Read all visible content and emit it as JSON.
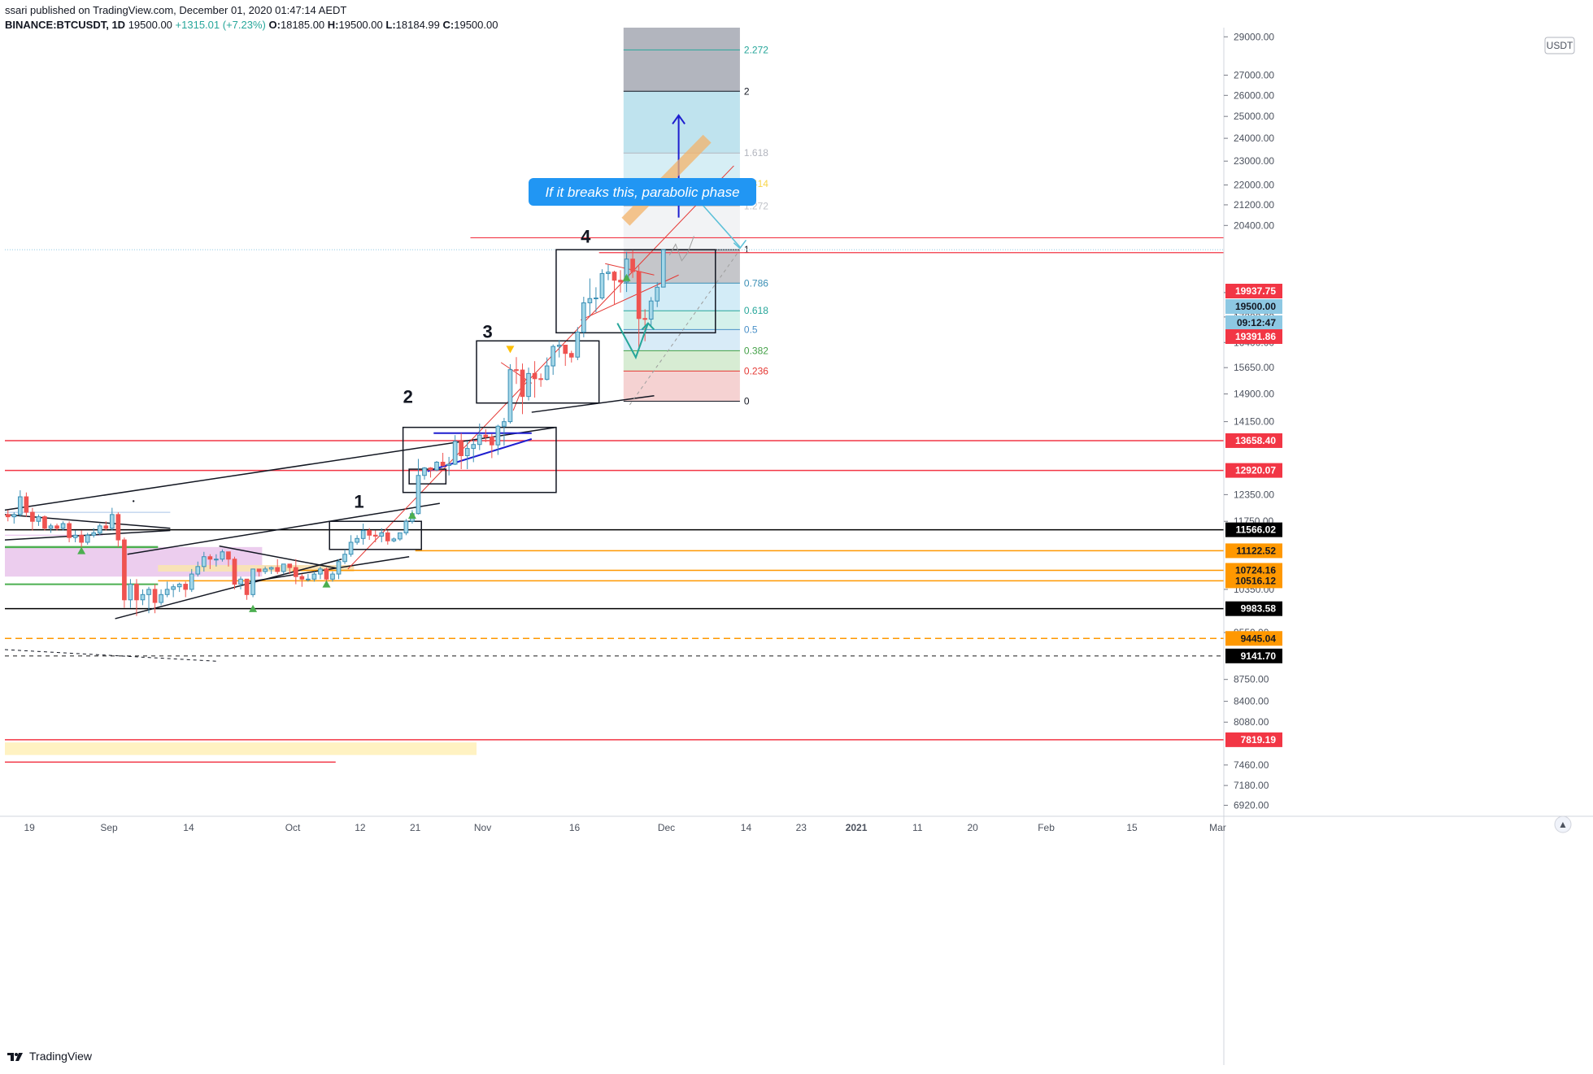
{
  "header": {
    "publisher_line": "ssari published on TradingView.com, December 01, 2020 01:47:14 AEDT",
    "symbol": "BINANCE:BTCUSDT, 1D",
    "last": "19500.00",
    "change": "+1315.01 (+7.23%)",
    "o_label": "O:",
    "o": "18185.00",
    "h_label": "H:",
    "h": "19500.00",
    "l_label": "L:",
    "l": "18184.99",
    "c_label": "C:",
    "c": "19500.00",
    "change_color": "#26a69a"
  },
  "footer": {
    "brand": "TradingView"
  },
  "chart_data": {
    "type": "candlestick",
    "symbol": "BINANCE:BTCUSDT",
    "interval": "1D",
    "currency": "USDT",
    "y_scale": "log",
    "ylim": [
      6800,
      29500
    ],
    "xlim": [
      "2020-08-15",
      "2021-03-02"
    ],
    "grid": false,
    "y_ticks": [
      "29000.00",
      "27000.00",
      "26000.00",
      "25000.00",
      "24000.00",
      "23000.00",
      "22000.00",
      "21200.00",
      "20400.00",
      "18000.00",
      "17200.00",
      "16400.00",
      "15650.00",
      "14900.00",
      "14150.00",
      "12350.00",
      "11750.00",
      "10350.00",
      "9550.00",
      "8750.00",
      "8400.00",
      "8080.00",
      "7460.00",
      "7180.00",
      "6920.00"
    ],
    "x_ticks": [
      {
        "date": "2020-08-19",
        "label": "19"
      },
      {
        "date": "2020-09-01",
        "label": "Sep"
      },
      {
        "date": "2020-09-14",
        "label": "14"
      },
      {
        "date": "2020-10-01",
        "label": "Oct"
      },
      {
        "date": "2020-10-12",
        "label": "12"
      },
      {
        "date": "2020-10-21",
        "label": "21"
      },
      {
        "date": "2020-11-01",
        "label": "Nov"
      },
      {
        "date": "2020-11-16",
        "label": "16"
      },
      {
        "date": "2020-12-01",
        "label": "Dec"
      },
      {
        "date": "2020-12-14",
        "label": "14"
      },
      {
        "date": "2020-12-23",
        "label": "23"
      },
      {
        "date": "2021-01-01",
        "label": "2021"
      },
      {
        "date": "2021-01-11",
        "label": "11"
      },
      {
        "date": "2021-01-20",
        "label": "20"
      },
      {
        "date": "2021-02-01",
        "label": "Feb"
      },
      {
        "date": "2021-02-15",
        "label": "15"
      },
      {
        "date": "2021-03-01",
        "label": "Mar"
      }
    ],
    "candle_colors": {
      "up": "#a4d7e8",
      "up_border": "#3b8fb5",
      "down": "#ef5350"
    },
    "candles": [
      {
        "d": "2020-08-15",
        "o": 11900,
        "h": 12000,
        "l": 11750,
        "c": 11850
      },
      {
        "d": "2020-08-16",
        "o": 11850,
        "h": 11950,
        "l": 11700,
        "c": 11900
      },
      {
        "d": "2020-08-17",
        "o": 11900,
        "h": 12450,
        "l": 11850,
        "c": 12300
      },
      {
        "d": "2020-08-18",
        "o": 12300,
        "h": 12400,
        "l": 11850,
        "c": 11950
      },
      {
        "d": "2020-08-19",
        "o": 11950,
        "h": 12050,
        "l": 11550,
        "c": 11750
      },
      {
        "d": "2020-08-20",
        "o": 11750,
        "h": 11900,
        "l": 11650,
        "c": 11850
      },
      {
        "d": "2020-08-21",
        "o": 11850,
        "h": 11880,
        "l": 11550,
        "c": 11600
      },
      {
        "d": "2020-08-22",
        "o": 11600,
        "h": 11700,
        "l": 11500,
        "c": 11650
      },
      {
        "d": "2020-08-23",
        "o": 11650,
        "h": 11700,
        "l": 11550,
        "c": 11600
      },
      {
        "d": "2020-08-24",
        "o": 11600,
        "h": 11750,
        "l": 11550,
        "c": 11700
      },
      {
        "d": "2020-08-25",
        "o": 11700,
        "h": 11750,
        "l": 11300,
        "c": 11400
      },
      {
        "d": "2020-08-26",
        "o": 11400,
        "h": 11550,
        "l": 11300,
        "c": 11450
      },
      {
        "d": "2020-08-27",
        "o": 11450,
        "h": 11550,
        "l": 11150,
        "c": 11300
      },
      {
        "d": "2020-08-28",
        "o": 11300,
        "h": 11500,
        "l": 11250,
        "c": 11450
      },
      {
        "d": "2020-08-29",
        "o": 11450,
        "h": 11600,
        "l": 11400,
        "c": 11500
      },
      {
        "d": "2020-08-30",
        "o": 11500,
        "h": 11700,
        "l": 11450,
        "c": 11650
      },
      {
        "d": "2020-08-31",
        "o": 11650,
        "h": 11750,
        "l": 11550,
        "c": 11600
      },
      {
        "d": "2020-09-01",
        "o": 11600,
        "h": 12050,
        "l": 11550,
        "c": 11900
      },
      {
        "d": "2020-09-02",
        "o": 11900,
        "h": 11950,
        "l": 11200,
        "c": 11350
      },
      {
        "d": "2020-09-03",
        "o": 11350,
        "h": 11400,
        "l": 10000,
        "c": 10150
      },
      {
        "d": "2020-09-04",
        "o": 10150,
        "h": 10550,
        "l": 10000,
        "c": 10450
      },
      {
        "d": "2020-09-05",
        "o": 10450,
        "h": 10550,
        "l": 9850,
        "c": 10150
      },
      {
        "d": "2020-09-06",
        "o": 10150,
        "h": 10350,
        "l": 10050,
        "c": 10250
      },
      {
        "d": "2020-09-07",
        "o": 10250,
        "h": 10400,
        "l": 9900,
        "c": 10350
      },
      {
        "d": "2020-09-08",
        "o": 10350,
        "h": 10450,
        "l": 9900,
        "c": 10100
      },
      {
        "d": "2020-09-09",
        "o": 10100,
        "h": 10350,
        "l": 10050,
        "c": 10250
      },
      {
        "d": "2020-09-10",
        "o": 10250,
        "h": 10500,
        "l": 10200,
        "c": 10350
      },
      {
        "d": "2020-09-11",
        "o": 10350,
        "h": 10450,
        "l": 10200,
        "c": 10400
      },
      {
        "d": "2020-09-12",
        "o": 10400,
        "h": 10480,
        "l": 10300,
        "c": 10450
      },
      {
        "d": "2020-09-13",
        "o": 10450,
        "h": 10500,
        "l": 10200,
        "c": 10350
      },
      {
        "d": "2020-09-14",
        "o": 10350,
        "h": 10750,
        "l": 10300,
        "c": 10650
      },
      {
        "d": "2020-09-15",
        "o": 10650,
        "h": 10900,
        "l": 10600,
        "c": 10800
      },
      {
        "d": "2020-09-16",
        "o": 10800,
        "h": 11100,
        "l": 10700,
        "c": 11000
      },
      {
        "d": "2020-09-17",
        "o": 11000,
        "h": 11050,
        "l": 10750,
        "c": 10950
      },
      {
        "d": "2020-09-18",
        "o": 10950,
        "h": 11050,
        "l": 10800,
        "c": 10950
      },
      {
        "d": "2020-09-19",
        "o": 10950,
        "h": 11150,
        "l": 10900,
        "c": 11100
      },
      {
        "d": "2020-09-20",
        "o": 11100,
        "h": 11100,
        "l": 10800,
        "c": 10950
      },
      {
        "d": "2020-09-21",
        "o": 10950,
        "h": 11000,
        "l": 10350,
        "c": 10450
      },
      {
        "d": "2020-09-22",
        "o": 10450,
        "h": 10600,
        "l": 10350,
        "c": 10550
      },
      {
        "d": "2020-09-23",
        "o": 10550,
        "h": 10550,
        "l": 10150,
        "c": 10250
      },
      {
        "d": "2020-09-24",
        "o": 10250,
        "h": 10750,
        "l": 10200,
        "c": 10750
      },
      {
        "d": "2020-09-25",
        "o": 10750,
        "h": 10750,
        "l": 10600,
        "c": 10700
      },
      {
        "d": "2020-09-26",
        "o": 10700,
        "h": 10800,
        "l": 10650,
        "c": 10750
      },
      {
        "d": "2020-09-27",
        "o": 10750,
        "h": 10800,
        "l": 10650,
        "c": 10780
      },
      {
        "d": "2020-09-28",
        "o": 10780,
        "h": 10950,
        "l": 10650,
        "c": 10700
      },
      {
        "d": "2020-09-29",
        "o": 10700,
        "h": 10850,
        "l": 10650,
        "c": 10850
      },
      {
        "d": "2020-09-30",
        "o": 10850,
        "h": 10850,
        "l": 10650,
        "c": 10780
      },
      {
        "d": "2020-10-01",
        "o": 10780,
        "h": 10950,
        "l": 10450,
        "c": 10600
      },
      {
        "d": "2020-10-02",
        "o": 10600,
        "h": 10650,
        "l": 10400,
        "c": 10550
      },
      {
        "d": "2020-10-03",
        "o": 10550,
        "h": 10650,
        "l": 10500,
        "c": 10550
      },
      {
        "d": "2020-10-04",
        "o": 10550,
        "h": 10700,
        "l": 10500,
        "c": 10650
      },
      {
        "d": "2020-10-05",
        "o": 10650,
        "h": 10800,
        "l": 10550,
        "c": 10750
      },
      {
        "d": "2020-10-06",
        "o": 10750,
        "h": 10780,
        "l": 10500,
        "c": 10550
      },
      {
        "d": "2020-10-07",
        "o": 10550,
        "h": 10700,
        "l": 10500,
        "c": 10650
      },
      {
        "d": "2020-10-08",
        "o": 10650,
        "h": 10950,
        "l": 10550,
        "c": 10900
      },
      {
        "d": "2020-10-09",
        "o": 10900,
        "h": 11150,
        "l": 10850,
        "c": 11050
      },
      {
        "d": "2020-10-10",
        "o": 11050,
        "h": 11450,
        "l": 11000,
        "c": 11300
      },
      {
        "d": "2020-10-11",
        "o": 11300,
        "h": 11450,
        "l": 11250,
        "c": 11380
      },
      {
        "d": "2020-10-12",
        "o": 11380,
        "h": 11700,
        "l": 11250,
        "c": 11550
      },
      {
        "d": "2020-10-13",
        "o": 11550,
        "h": 11600,
        "l": 11350,
        "c": 11450
      },
      {
        "d": "2020-10-14",
        "o": 11450,
        "h": 11550,
        "l": 11300,
        "c": 11430
      },
      {
        "d": "2020-10-15",
        "o": 11430,
        "h": 11600,
        "l": 11300,
        "c": 11500
      },
      {
        "d": "2020-10-16",
        "o": 11500,
        "h": 11550,
        "l": 11250,
        "c": 11330
      },
      {
        "d": "2020-10-17",
        "o": 11330,
        "h": 11400,
        "l": 11300,
        "c": 11370
      },
      {
        "d": "2020-10-18",
        "o": 11370,
        "h": 11500,
        "l": 11330,
        "c": 11500
      },
      {
        "d": "2020-10-19",
        "o": 11500,
        "h": 11800,
        "l": 11450,
        "c": 11750
      },
      {
        "d": "2020-10-20",
        "o": 11750,
        "h": 12000,
        "l": 11700,
        "c": 11920
      },
      {
        "d": "2020-10-21",
        "o": 11920,
        "h": 13200,
        "l": 11900,
        "c": 12800
      },
      {
        "d": "2020-10-22",
        "o": 12800,
        "h": 13000,
        "l": 12700,
        "c": 12980
      },
      {
        "d": "2020-10-23",
        "o": 12980,
        "h": 13000,
        "l": 12750,
        "c": 12930
      },
      {
        "d": "2020-10-24",
        "o": 12930,
        "h": 13150,
        "l": 12900,
        "c": 13120
      },
      {
        "d": "2020-10-25",
        "o": 13120,
        "h": 13350,
        "l": 13000,
        "c": 13040
      },
      {
        "d": "2020-10-26",
        "o": 13040,
        "h": 13250,
        "l": 12800,
        "c": 13070
      },
      {
        "d": "2020-10-27",
        "o": 13070,
        "h": 13800,
        "l": 13050,
        "c": 13640
      },
      {
        "d": "2020-10-28",
        "o": 13640,
        "h": 13850,
        "l": 12950,
        "c": 13280
      },
      {
        "d": "2020-10-29",
        "o": 13280,
        "h": 13650,
        "l": 12950,
        "c": 13460
      },
      {
        "d": "2020-10-30",
        "o": 13460,
        "h": 13680,
        "l": 13120,
        "c": 13560
      },
      {
        "d": "2020-10-31",
        "o": 13560,
        "h": 14100,
        "l": 13420,
        "c": 13800
      },
      {
        "d": "2020-11-01",
        "o": 13800,
        "h": 13950,
        "l": 13620,
        "c": 13750
      },
      {
        "d": "2020-11-02",
        "o": 13750,
        "h": 13830,
        "l": 13220,
        "c": 13550
      },
      {
        "d": "2020-11-03",
        "o": 13550,
        "h": 14070,
        "l": 13300,
        "c": 14030
      },
      {
        "d": "2020-11-04",
        "o": 14030,
        "h": 14250,
        "l": 13530,
        "c": 14150
      },
      {
        "d": "2020-11-05",
        "o": 14150,
        "h": 15750,
        "l": 14100,
        "c": 15590
      },
      {
        "d": "2020-11-06",
        "o": 15590,
        "h": 15960,
        "l": 15180,
        "c": 15580
      },
      {
        "d": "2020-11-07",
        "o": 15580,
        "h": 15770,
        "l": 14350,
        "c": 14830
      },
      {
        "d": "2020-11-08",
        "o": 14830,
        "h": 15650,
        "l": 14720,
        "c": 15480
      },
      {
        "d": "2020-11-09",
        "o": 15480,
        "h": 15840,
        "l": 14800,
        "c": 15330
      },
      {
        "d": "2020-11-10",
        "o": 15330,
        "h": 15480,
        "l": 15100,
        "c": 15310
      },
      {
        "d": "2020-11-11",
        "o": 15310,
        "h": 15950,
        "l": 15280,
        "c": 15700
      },
      {
        "d": "2020-11-12",
        "o": 15700,
        "h": 16340,
        "l": 15440,
        "c": 16280
      },
      {
        "d": "2020-11-13",
        "o": 16280,
        "h": 16480,
        "l": 15950,
        "c": 16320
      },
      {
        "d": "2020-11-14",
        "o": 16320,
        "h": 16330,
        "l": 15700,
        "c": 16070
      },
      {
        "d": "2020-11-15",
        "o": 16070,
        "h": 16150,
        "l": 15800,
        "c": 15960
      },
      {
        "d": "2020-11-16",
        "o": 15960,
        "h": 16880,
        "l": 15870,
        "c": 16720
      },
      {
        "d": "2020-11-17",
        "o": 16720,
        "h": 17860,
        "l": 16560,
        "c": 17660
      },
      {
        "d": "2020-11-18",
        "o": 17660,
        "h": 18480,
        "l": 17220,
        "c": 17800
      },
      {
        "d": "2020-11-19",
        "o": 17800,
        "h": 18180,
        "l": 17350,
        "c": 17820
      },
      {
        "d": "2020-11-20",
        "o": 17820,
        "h": 18800,
        "l": 17760,
        "c": 18650
      },
      {
        "d": "2020-11-21",
        "o": 18650,
        "h": 18960,
        "l": 18420,
        "c": 18700
      },
      {
        "d": "2020-11-22",
        "o": 18700,
        "h": 18750,
        "l": 17600,
        "c": 18420
      },
      {
        "d": "2020-11-23",
        "o": 18420,
        "h": 18770,
        "l": 18000,
        "c": 18360
      },
      {
        "d": "2020-11-24",
        "o": 18360,
        "h": 19420,
        "l": 18020,
        "c": 19160
      },
      {
        "d": "2020-11-25",
        "o": 19160,
        "h": 19480,
        "l": 18500,
        "c": 18720
      },
      {
        "d": "2020-11-26",
        "o": 18720,
        "h": 18910,
        "l": 16200,
        "c": 17150
      },
      {
        "d": "2020-11-27",
        "o": 17150,
        "h": 17450,
        "l": 16440,
        "c": 17130
      },
      {
        "d": "2020-11-28",
        "o": 17130,
        "h": 17850,
        "l": 16880,
        "c": 17720
      },
      {
        "d": "2020-11-29",
        "o": 17720,
        "h": 18350,
        "l": 17520,
        "c": 18180
      },
      {
        "d": "2020-11-30",
        "o": 18185,
        "h": 19500,
        "l": 18185,
        "c": 19500
      }
    ],
    "price_tags": [
      {
        "price": 19937.75,
        "label": "19937.75",
        "bg": "#f23645",
        "fg": "#ffffff"
      },
      {
        "price": 19500.0,
        "label": "19500.00",
        "bg": "#8dc8e3",
        "fg": "#131722"
      },
      {
        "price": 19280,
        "label": "09:12:47",
        "bg": "#8dc8e3",
        "fg": "#131722"
      },
      {
        "price": 19000,
        "label": "19391.86",
        "bg": "#f23645",
        "fg": "#ffffff"
      },
      {
        "price": 13658.4,
        "label": "13658.40",
        "bg": "#f23645",
        "fg": "#ffffff"
      },
      {
        "price": 12920.07,
        "label": "12920.07",
        "bg": "#f23645",
        "fg": "#ffffff"
      },
      {
        "price": 11566.02,
        "label": "11566.02",
        "bg": "#000000",
        "fg": "#ffffff"
      },
      {
        "price": 11122.52,
        "label": "11122.52",
        "bg": "#ff9800",
        "fg": "#131722"
      },
      {
        "price": 10724.16,
        "label": "10724.16",
        "bg": "#ff9800",
        "fg": "#131722"
      },
      {
        "price": 10516.12,
        "label": "10516.12",
        "bg": "#ff9800",
        "fg": "#131722"
      },
      {
        "price": 9983.58,
        "label": "9983.58",
        "bg": "#000000",
        "fg": "#ffffff"
      },
      {
        "price": 9445.04,
        "label": "9445.04",
        "bg": "#ff9800",
        "fg": "#131722"
      },
      {
        "price": 9141.7,
        "label": "9141.70",
        "bg": "#000000",
        "fg": "#ffffff"
      },
      {
        "price": 7819.19,
        "label": "7819.19",
        "bg": "#f23645",
        "fg": "#ffffff"
      }
    ],
    "fib_levels": [
      {
        "label": "2.272",
        "price": 28300,
        "color": "#26a69a",
        "fill": "#b2b5be"
      },
      {
        "label": "2",
        "price": 26200,
        "color": "#131722",
        "fill": "#bfe3ee"
      },
      {
        "label": "1.618",
        "price": 23350,
        "color": "#b2b5be",
        "fill": "#d6eef5"
      },
      {
        "label": "1.414",
        "price": 22050,
        "color": "#f7d54a",
        "fill": "#f7f2d2"
      },
      {
        "label": "1.272",
        "price": 21150,
        "color": "#c0c3c9",
        "fill": "#f2f3f5"
      },
      {
        "label": "1",
        "price": 19500,
        "color": "#131722",
        "fill": "#c5c6ca"
      },
      {
        "label": "0.786",
        "price": 18320,
        "color": "#3b8fb5",
        "fill": "#d3ecf7"
      },
      {
        "label": "0.618",
        "price": 17400,
        "color": "#26a69a",
        "fill": "#d4f1eb"
      },
      {
        "label": "0.5",
        "price": 16800,
        "color": "#4a90c8",
        "fill": "#d8ebf7"
      },
      {
        "label": "0.382",
        "price": 16150,
        "color": "#43a047",
        "fill": "#d7ecd3"
      },
      {
        "label": "0.236",
        "price": 15550,
        "color": "#e53935",
        "fill": "#f5d2d2"
      },
      {
        "label": "0",
        "price": 14700,
        "color": "#131722",
        "fill": null
      }
    ],
    "wave_labels": [
      {
        "label": "1",
        "date": "2020-10-11",
        "price": 12050
      },
      {
        "label": "2",
        "date": "2020-10-19",
        "price": 14650
      },
      {
        "label": "3",
        "date": "2020-11-01",
        "price": 16550
      },
      {
        "label": "4",
        "date": "2020-11-17",
        "price": 19750
      }
    ],
    "annotations": [
      {
        "text": "If it breaks this, parabolic phase",
        "bg": "#2196f3"
      }
    ]
  }
}
